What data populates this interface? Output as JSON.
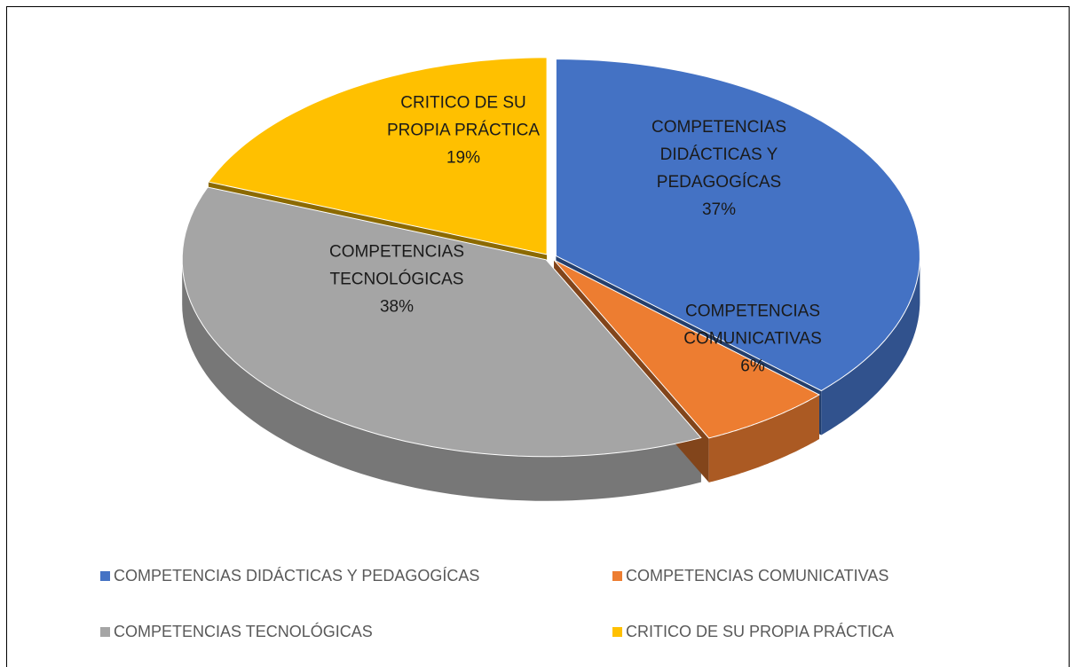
{
  "chart_data": {
    "type": "pie",
    "categories": [
      "COMPETENCIAS DIDÁCTICAS Y PEDAGOGÍCAS",
      "COMPETENCIAS COMUNICATIVAS",
      "COMPETENCIAS TECNOLÓGICAS",
      "CRITICO DE SU PROPIA PRÁCTICA"
    ],
    "values": [
      37,
      6,
      38,
      19
    ],
    "value_labels": [
      "37%",
      "6%",
      "38%",
      "19%"
    ],
    "colors": [
      "#4472c4",
      "#ed7d31",
      "#a5a5a5",
      "#ffc000"
    ],
    "legend": "bottom"
  }
}
